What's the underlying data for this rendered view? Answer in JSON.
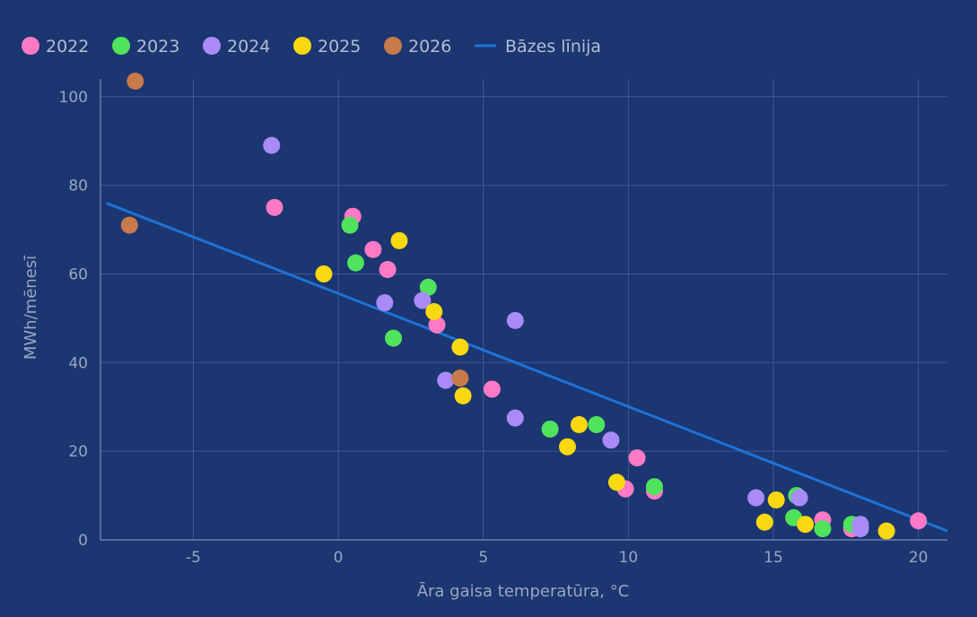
{
  "chart_data": {
    "type": "scatter",
    "title": "",
    "xlabel": "Āra gaisa temperatūra, °C",
    "ylabel": "MWh/mēnesī",
    "xlim": [
      -8.2,
      21
    ],
    "ylim": [
      0,
      104
    ],
    "xticks": [
      -5,
      0,
      5,
      10,
      15,
      20
    ],
    "yticks": [
      0,
      20,
      40,
      60,
      80,
      100
    ],
    "grid": true,
    "legend_position": "top-left",
    "series": [
      {
        "name": "2022",
        "color": "#ff79c6",
        "points": [
          [
            -2.2,
            75
          ],
          [
            0.5,
            73
          ],
          [
            1.2,
            65.5
          ],
          [
            1.7,
            61
          ],
          [
            3.4,
            48.5
          ],
          [
            5.3,
            34
          ],
          [
            9.9,
            11.5
          ],
          [
            10.3,
            18.5
          ],
          [
            10.9,
            11
          ],
          [
            16.7,
            4.5
          ],
          [
            17.7,
            2.5
          ],
          [
            20.0,
            4.3
          ]
        ]
      },
      {
        "name": "2023",
        "color": "#50e35c",
        "points": [
          [
            0.4,
            71
          ],
          [
            0.6,
            62.5
          ],
          [
            1.9,
            45.5
          ],
          [
            3.1,
            57
          ],
          [
            7.3,
            25
          ],
          [
            8.9,
            26
          ],
          [
            10.9,
            12
          ],
          [
            15.7,
            5
          ],
          [
            15.8,
            10
          ],
          [
            16.7,
            2.5
          ],
          [
            17.7,
            3.5
          ]
        ]
      },
      {
        "name": "2024",
        "color": "#a98af7",
        "points": [
          [
            -2.3,
            89
          ],
          [
            1.6,
            53.5
          ],
          [
            2.9,
            54
          ],
          [
            3.7,
            36
          ],
          [
            6.1,
            49.5
          ],
          [
            6.1,
            27.5
          ],
          [
            9.4,
            22.5
          ],
          [
            14.4,
            9.5
          ],
          [
            15.9,
            9.5
          ],
          [
            18.0,
            2.5
          ],
          [
            18.0,
            3.5
          ]
        ]
      },
      {
        "name": "2025",
        "color": "#f8d80f",
        "points": [
          [
            -0.5,
            60
          ],
          [
            2.1,
            67.5
          ],
          [
            3.3,
            51.5
          ],
          [
            4.2,
            43.5
          ],
          [
            4.3,
            32.5
          ],
          [
            7.9,
            21
          ],
          [
            8.3,
            26
          ],
          [
            9.6,
            13
          ],
          [
            14.7,
            4
          ],
          [
            15.1,
            9
          ],
          [
            16.1,
            3.5
          ],
          [
            18.9,
            2
          ]
        ]
      },
      {
        "name": "2026",
        "color": "#c97a4a",
        "points": [
          [
            -7.0,
            103.5
          ],
          [
            -7.2,
            71
          ],
          [
            4.2,
            36.5
          ]
        ]
      }
    ],
    "lines": [
      {
        "name": "Bāzes līnija",
        "color": "#1f72d6",
        "points": [
          [
            -8,
            76
          ],
          [
            21,
            2
          ]
        ]
      }
    ]
  }
}
